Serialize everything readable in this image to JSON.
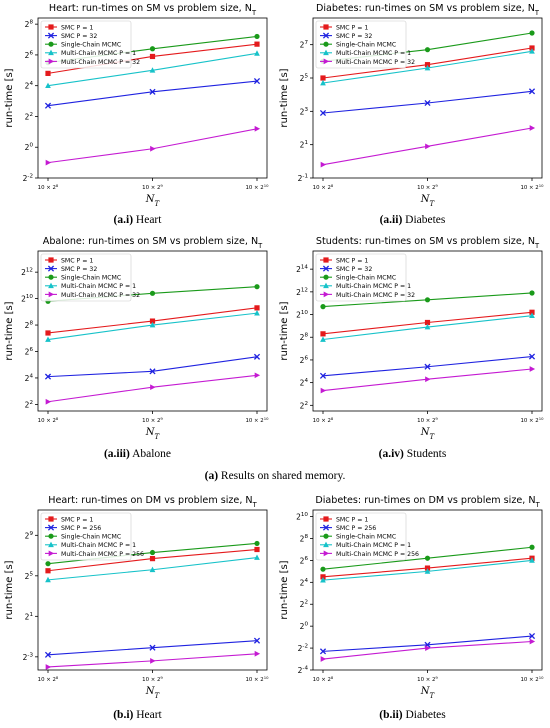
{
  "figure": {
    "group_a_label": "(a)",
    "group_a_text": "Results on shared memory."
  },
  "colors": {
    "smc_p1": "#e41a1c",
    "smc_pn": "#1f22e0",
    "single_chain": "#1a9a1a",
    "multi_p1": "#17c2c9",
    "multi_pn": "#c41ad2"
  },
  "chart_data": [
    {
      "type": "line",
      "title": "Heart: run-times on SM vs problem size, N_T",
      "xlabel": "N_T",
      "ylabel": "run-time [s]",
      "x": [
        256,
        512,
        1024
      ],
      "x_tick_labels": [
        "10 × 2^8",
        "10 × 2^9",
        "10 × 2^10"
      ],
      "y_scale": "log2",
      "y_exp_range": [
        -2,
        8.4
      ],
      "y_tick_exps": [
        -2,
        0,
        2,
        4,
        6,
        8
      ],
      "legend": "top-left",
      "caption_label": "(a.i)",
      "caption_text": "Heart",
      "series": [
        {
          "name": "SMC P = 1",
          "color": "#e41a1c",
          "marker": "square",
          "y_log2": [
            4.8,
            5.9,
            6.7
          ]
        },
        {
          "name": "SMC P = 32",
          "color": "#1f22e0",
          "marker": "x",
          "y_log2": [
            2.7,
            3.6,
            4.3
          ]
        },
        {
          "name": "Single-Chain MCMC",
          "color": "#1a9a1a",
          "marker": "circle",
          "y_log2": [
            5.5,
            6.4,
            7.2
          ]
        },
        {
          "name": "Multi-Chain MCMC P = 1",
          "color": "#17c2c9",
          "marker": "triangle",
          "y_log2": [
            4.0,
            5.0,
            6.1
          ]
        },
        {
          "name": "Multi-Chain MCMC P = 32",
          "color": "#c41ad2",
          "marker": "tri-right",
          "y_log2": [
            -1.0,
            -0.1,
            1.2
          ]
        }
      ]
    },
    {
      "type": "line",
      "title": "Diabetes: run-times on SM vs problem size, N_T",
      "xlabel": "N_T",
      "ylabel": "run-time [s]",
      "x": [
        256,
        512,
        1024
      ],
      "x_tick_labels": [
        "10 × 2^8",
        "10 × 2^9",
        "10 × 2^10"
      ],
      "y_scale": "log2",
      "y_exp_range": [
        -1,
        8.6
      ],
      "y_tick_exps": [
        -1,
        1,
        3,
        5,
        7
      ],
      "legend": "top-left",
      "caption_label": "(a.ii)",
      "caption_text": "Diabetes",
      "series": [
        {
          "name": "SMC P = 1",
          "color": "#e41a1c",
          "marker": "square",
          "y_log2": [
            5.0,
            5.8,
            6.8
          ]
        },
        {
          "name": "SMC P = 32",
          "color": "#1f22e0",
          "marker": "x",
          "y_log2": [
            2.9,
            3.5,
            4.2
          ]
        },
        {
          "name": "Single-Chain MCMC",
          "color": "#1a9a1a",
          "marker": "circle",
          "y_log2": [
            6.0,
            6.7,
            7.7
          ]
        },
        {
          "name": "Multi-Chain MCMC P = 1",
          "color": "#17c2c9",
          "marker": "triangle",
          "y_log2": [
            4.7,
            5.6,
            6.6
          ]
        },
        {
          "name": "Multi-Chain MCMC P = 32",
          "color": "#c41ad2",
          "marker": "tri-right",
          "y_log2": [
            -0.2,
            0.9,
            2.0
          ]
        }
      ]
    },
    {
      "type": "line",
      "title": "Abalone: run-times on SM vs problem size, N_T",
      "xlabel": "N_T",
      "ylabel": "run-time [s]",
      "x": [
        256,
        512,
        1024
      ],
      "x_tick_labels": [
        "10 × 2^8",
        "10 × 2^9",
        "10 × 2^10"
      ],
      "y_scale": "log2",
      "y_exp_range": [
        1.5,
        13.6
      ],
      "y_tick_exps": [
        2,
        4,
        6,
        8,
        10,
        12
      ],
      "legend": "top-left",
      "caption_label": "(a.iii)",
      "caption_text": "Abalone",
      "series": [
        {
          "name": "SMC P = 1",
          "color": "#e41a1c",
          "marker": "square",
          "y_log2": [
            7.4,
            8.3,
            9.3
          ]
        },
        {
          "name": "SMC P = 32",
          "color": "#1f22e0",
          "marker": "x",
          "y_log2": [
            4.1,
            4.5,
            5.6
          ]
        },
        {
          "name": "Single-Chain MCMC",
          "color": "#1a9a1a",
          "marker": "circle",
          "y_log2": [
            9.8,
            10.4,
            10.9
          ]
        },
        {
          "name": "Multi-Chain MCMC P = 1",
          "color": "#17c2c9",
          "marker": "triangle",
          "y_log2": [
            6.9,
            8.0,
            8.9
          ]
        },
        {
          "name": "Multi-Chain MCMC P = 32",
          "color": "#c41ad2",
          "marker": "tri-right",
          "y_log2": [
            2.2,
            3.3,
            4.2
          ]
        }
      ]
    },
    {
      "type": "line",
      "title": "Students: run-times on SM vs problem size, N_T",
      "xlabel": "N_T",
      "ylabel": "run-time [s]",
      "x": [
        256,
        512,
        1024
      ],
      "x_tick_labels": [
        "10 × 2^8",
        "10 × 2^9",
        "10 × 2^10"
      ],
      "y_scale": "log2",
      "y_exp_range": [
        1.5,
        15.6
      ],
      "y_tick_exps": [
        2,
        4,
        6,
        8,
        10,
        12,
        14
      ],
      "legend": "top-left",
      "caption_label": "(a.iv)",
      "caption_text": "Students",
      "series": [
        {
          "name": "SMC P = 1",
          "color": "#e41a1c",
          "marker": "square",
          "y_log2": [
            8.3,
            9.3,
            10.2
          ]
        },
        {
          "name": "SMC P = 32",
          "color": "#1f22e0",
          "marker": "x",
          "y_log2": [
            4.6,
            5.4,
            6.3
          ]
        },
        {
          "name": "Single-Chain MCMC",
          "color": "#1a9a1a",
          "marker": "circle",
          "y_log2": [
            10.7,
            11.3,
            11.9
          ]
        },
        {
          "name": "Multi-Chain MCMC P = 1",
          "color": "#17c2c9",
          "marker": "triangle",
          "y_log2": [
            7.8,
            8.9,
            9.9
          ]
        },
        {
          "name": "Multi-Chain MCMC P = 32",
          "color": "#c41ad2",
          "marker": "tri-right",
          "y_log2": [
            3.3,
            4.3,
            5.2
          ]
        }
      ]
    },
    {
      "type": "line",
      "title": "Heart: run-times on DM vs problem size, N_T",
      "xlabel": "N_T",
      "ylabel": "run-time [s]",
      "x": [
        256,
        512,
        1024
      ],
      "x_tick_labels": [
        "10 × 2^8",
        "10 × 2^9",
        "10 × 2^10"
      ],
      "y_scale": "log2",
      "y_exp_range": [
        -4.3,
        11.5
      ],
      "y_tick_exps": [
        -3,
        1,
        5,
        9
      ],
      "legend": "top-left",
      "caption_label": "(b.i)",
      "caption_text": "Heart",
      "series": [
        {
          "name": "SMC P = 1",
          "color": "#e41a1c",
          "marker": "square",
          "y_log2": [
            5.5,
            6.7,
            7.6
          ]
        },
        {
          "name": "SMC P = 256",
          "color": "#1f22e0",
          "marker": "x",
          "y_log2": [
            -2.8,
            -2.1,
            -1.4
          ]
        },
        {
          "name": "Single-Chain MCMC",
          "color": "#1a9a1a",
          "marker": "circle",
          "y_log2": [
            6.2,
            7.3,
            8.2
          ]
        },
        {
          "name": "Multi-Chain MCMC P = 1",
          "color": "#17c2c9",
          "marker": "triangle",
          "y_log2": [
            4.6,
            5.6,
            6.8
          ]
        },
        {
          "name": "Multi-Chain MCMC P = 256",
          "color": "#c41ad2",
          "marker": "tri-right",
          "y_log2": [
            -4.0,
            -3.4,
            -2.7
          ]
        }
      ]
    },
    {
      "type": "line",
      "title": "Diabetes: run-times on DM vs problem size, N_T",
      "xlabel": "N_T",
      "ylabel": "run-time [s]",
      "x": [
        256,
        512,
        1024
      ],
      "x_tick_labels": [
        "10 × 2^8",
        "10 × 2^9",
        "10 × 2^10"
      ],
      "y_scale": "log2",
      "y_exp_range": [
        -4,
        10.6
      ],
      "y_tick_exps": [
        -4,
        -2,
        0,
        2,
        4,
        6,
        8,
        10
      ],
      "legend": "top-left",
      "caption_label": "(b.ii)",
      "caption_text": "Diabetes",
      "series": [
        {
          "name": "SMC P = 1",
          "color": "#e41a1c",
          "marker": "square",
          "y_log2": [
            4.5,
            5.3,
            6.2
          ]
        },
        {
          "name": "SMC P = 256",
          "color": "#1f22e0",
          "marker": "x",
          "y_log2": [
            -2.3,
            -1.7,
            -0.9
          ]
        },
        {
          "name": "Single-Chain MCMC",
          "color": "#1a9a1a",
          "marker": "circle",
          "y_log2": [
            5.2,
            6.2,
            7.2
          ]
        },
        {
          "name": "Multi-Chain MCMC P = 1",
          "color": "#17c2c9",
          "marker": "triangle",
          "y_log2": [
            4.2,
            5.0,
            6.0
          ]
        },
        {
          "name": "Multi-Chain MCMC P = 256",
          "color": "#c41ad2",
          "marker": "tri-right",
          "y_log2": [
            -3.0,
            -2.0,
            -1.4
          ]
        }
      ]
    }
  ]
}
